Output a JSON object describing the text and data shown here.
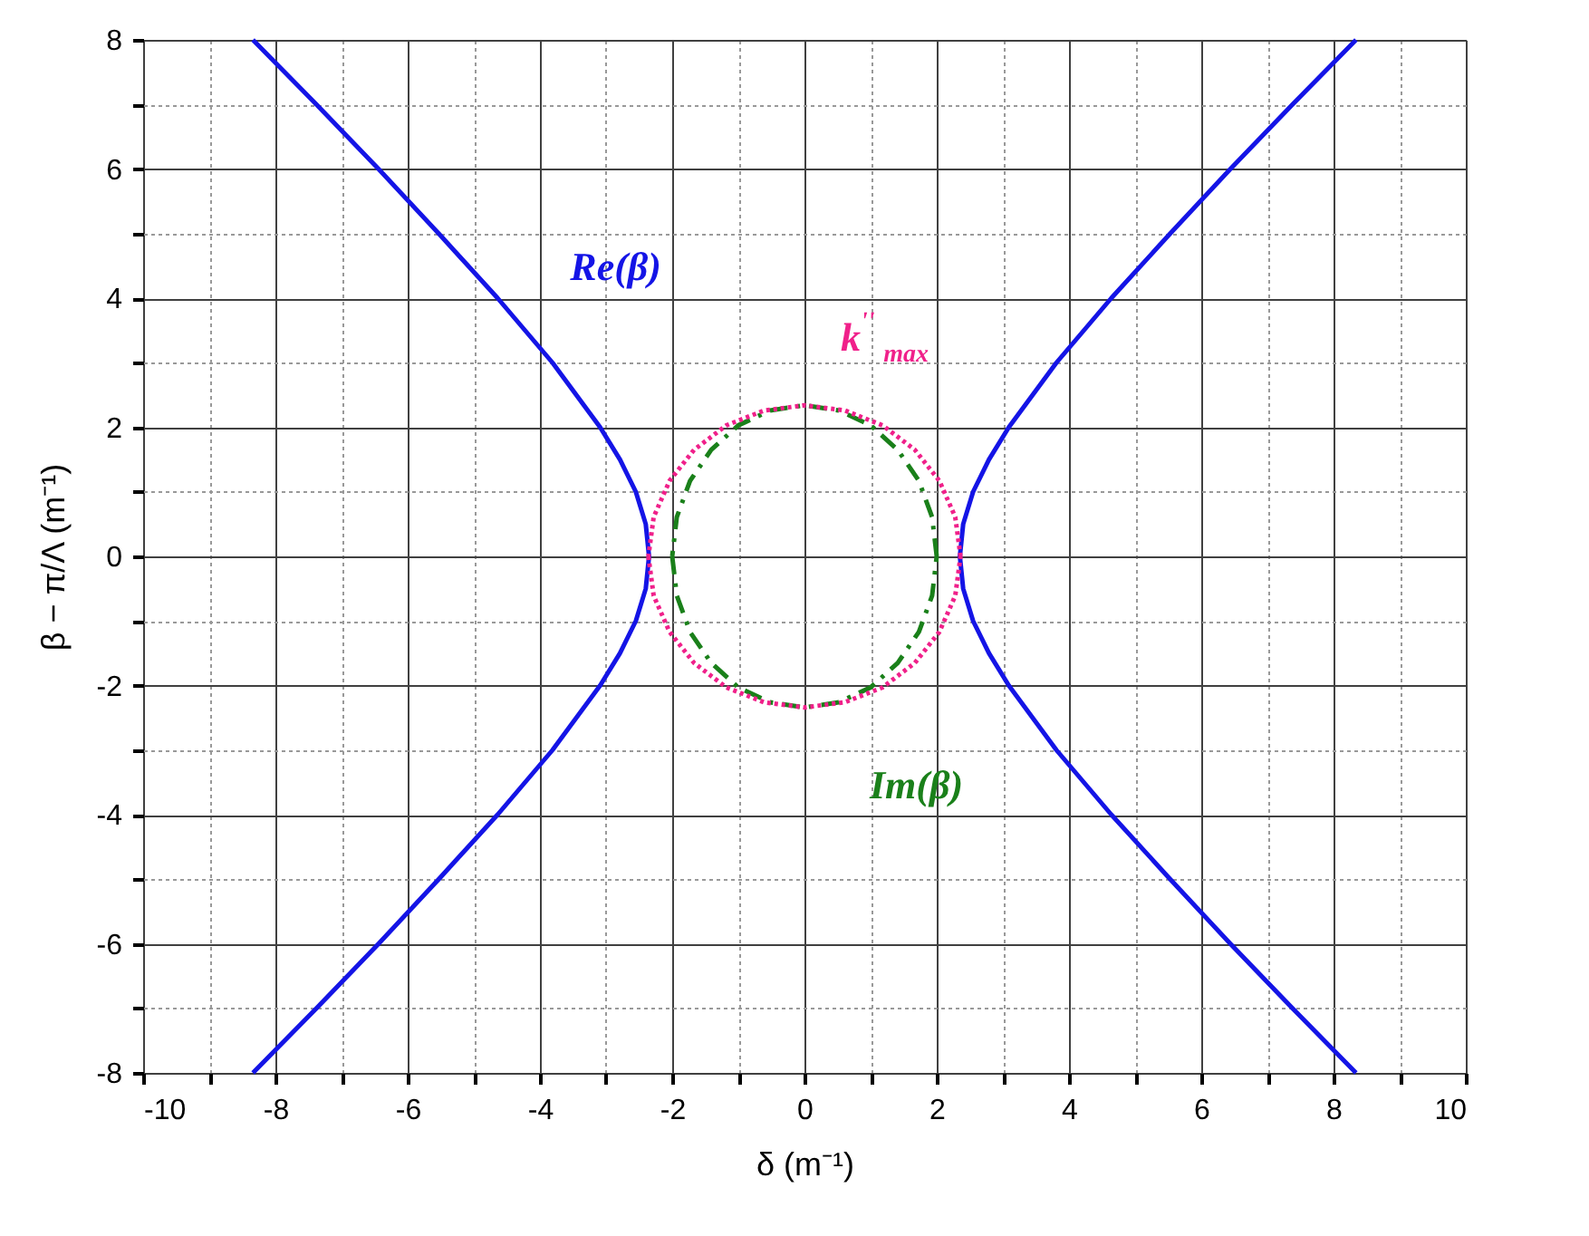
{
  "chart_data": {
    "type": "line",
    "xlabel": "δ (m⁻¹)",
    "ylabel": "β − π/Λ (m⁻¹)",
    "xlim": [
      -10,
      10
    ],
    "ylim": [
      -8,
      8
    ],
    "xticks": [
      -10,
      {
        "value": -9,
        "label": null
      },
      -8,
      {
        "value": -7,
        "label": null
      },
      -6,
      {
        "value": -5,
        "label": null
      },
      -4,
      {
        "value": -3,
        "label": null
      },
      -2,
      {
        "value": -1,
        "label": null
      },
      0,
      {
        "value": 1,
        "label": null
      },
      2,
      {
        "value": 3,
        "label": null
      },
      4,
      {
        "value": 5,
        "label": null
      },
      6,
      {
        "value": 7,
        "label": null
      },
      8,
      {
        "value": 9,
        "label": null
      },
      10
    ],
    "yticks": [
      -8,
      {
        "value": -7,
        "label": null
      },
      -6,
      {
        "value": -5,
        "label": null
      },
      -4,
      {
        "value": -3,
        "label": null
      },
      -2,
      {
        "value": -1,
        "label": null
      },
      0,
      {
        "value": 1,
        "label": null
      },
      2,
      {
        "value": 3,
        "label": null
      },
      4,
      {
        "value": 5,
        "label": null
      },
      6,
      {
        "value": 7,
        "label": null
      },
      8
    ],
    "grid": true,
    "marker": "none",
    "series": [
      {
        "name": "Re(β)",
        "color": "#1414e6",
        "line_style": "solid",
        "x": [
          -8.34,
          -7.38,
          -6.44,
          -5.53,
          -4.64,
          -3.81,
          -3.09,
          -2.79,
          -2.55,
          -2.4,
          -2.35,
          -2.4,
          -2.55,
          -2.79,
          -3.09,
          -3.81,
          -4.64,
          -5.53,
          -6.44,
          -7.38,
          -8.34,
          null,
          8.34,
          7.38,
          6.44,
          5.53,
          4.64,
          3.81,
          3.09,
          2.79,
          2.55,
          2.4,
          2.35,
          2.4,
          2.55,
          2.79,
          3.09,
          3.81,
          4.64,
          5.53,
          6.44,
          7.38,
          8.34
        ],
        "values": [
          8,
          7,
          6,
          5,
          4,
          3,
          2,
          1.5,
          1,
          0.5,
          0,
          -0.5,
          -1,
          -1.5,
          -2,
          -3,
          -4,
          -5,
          -6,
          -7,
          -8,
          null,
          8,
          7,
          6,
          5,
          4,
          3,
          2,
          1.5,
          1,
          0.5,
          0,
          -0.5,
          -1,
          -1.5,
          -2,
          -3,
          -4,
          -5,
          -6,
          -7,
          -8
        ]
      },
      {
        "name": "Im(β)",
        "color": "#1a801a",
        "line_style": "dashed",
        "x": [
          2.0,
          1.93,
          1.73,
          1.41,
          1.0,
          0.52,
          0,
          -0.52,
          -1.0,
          -1.41,
          -1.73,
          -1.93,
          -2.0,
          null,
          -2.0,
          -1.93,
          -1.73,
          -1.41,
          -1.0,
          -0.52,
          0,
          0.52,
          1.0,
          1.41,
          1.73,
          1.93,
          2.0
        ],
        "values": [
          0,
          0.61,
          1.17,
          1.65,
          2.03,
          2.26,
          2.34,
          2.26,
          2.03,
          1.65,
          1.17,
          0.61,
          0,
          null,
          0,
          -0.61,
          -1.17,
          -1.65,
          -2.03,
          -2.26,
          -2.34,
          -2.26,
          -2.03,
          -1.65,
          -1.17,
          -0.61,
          0
        ]
      },
      {
        "name": "k$^{''}$$_{max}$",
        "color": "#f0208a",
        "line_style": "dotted",
        "x": [
          2.36,
          2.28,
          2.04,
          1.67,
          1.18,
          0.61,
          0,
          -0.61,
          -1.18,
          -1.67,
          -2.04,
          -2.28,
          -2.36,
          null,
          -2.36,
          -2.28,
          -2.04,
          -1.67,
          -1.18,
          -0.61,
          0,
          0.61,
          1.18,
          1.67,
          2.04,
          2.28,
          2.36
        ],
        "values": [
          0,
          0.61,
          1.17,
          1.65,
          2.03,
          2.26,
          2.34,
          2.26,
          2.03,
          1.65,
          1.17,
          0.61,
          0,
          null,
          0,
          -0.61,
          -1.17,
          -1.65,
          -2.03,
          -2.26,
          -2.34,
          -2.26,
          -2.03,
          -1.65,
          -1.17,
          -0.61,
          0
        ]
      }
    ]
  }
}
